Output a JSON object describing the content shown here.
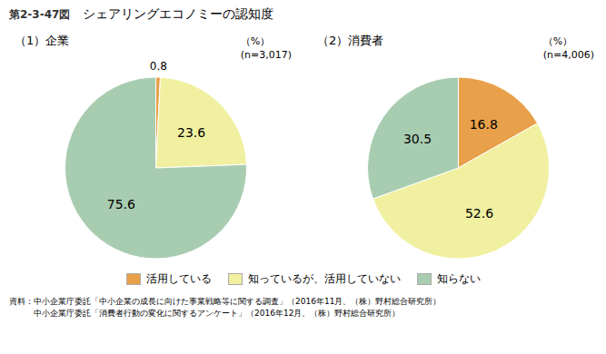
{
  "title": "シェアリングエコノミーの認知度",
  "annotations": [
    "第2-3-47図",
    "資料：中小企業庁委託「中小企業の成長に向けた事業戦略等に関する調査」（2016年11月、（株）野村総合研究所）",
    "　　　中小企業庁委託「消費者行動の変化に関するアンケート」（2016年12月、（株）野村総合研究所）"
  ],
  "chart_data": [
    {
      "type": "pie",
      "subtitle": "（1）企業",
      "categories": [
        "活用している",
        "知っているが、活用していない",
        "知らない"
      ],
      "values": [
        0.8,
        23.6,
        75.6
      ],
      "colors": [
        "#E8A04A",
        "#F0F0A0",
        "#A8CCB0"
      ],
      "data_labels": true,
      "annotations": [
        "（%）",
        "(n=3,017)"
      ]
    },
    {
      "type": "pie",
      "subtitle": "（2）消費者",
      "categories": [
        "活用している",
        "知っているが、活用していない",
        "知らない"
      ],
      "values": [
        16.8,
        52.6,
        30.5
      ],
      "colors": [
        "#E8A04A",
        "#F0F0A0",
        "#A8CCB0"
      ],
      "data_labels": true,
      "annotations": [
        "（%）",
        "(n=4,006)"
      ]
    }
  ]
}
